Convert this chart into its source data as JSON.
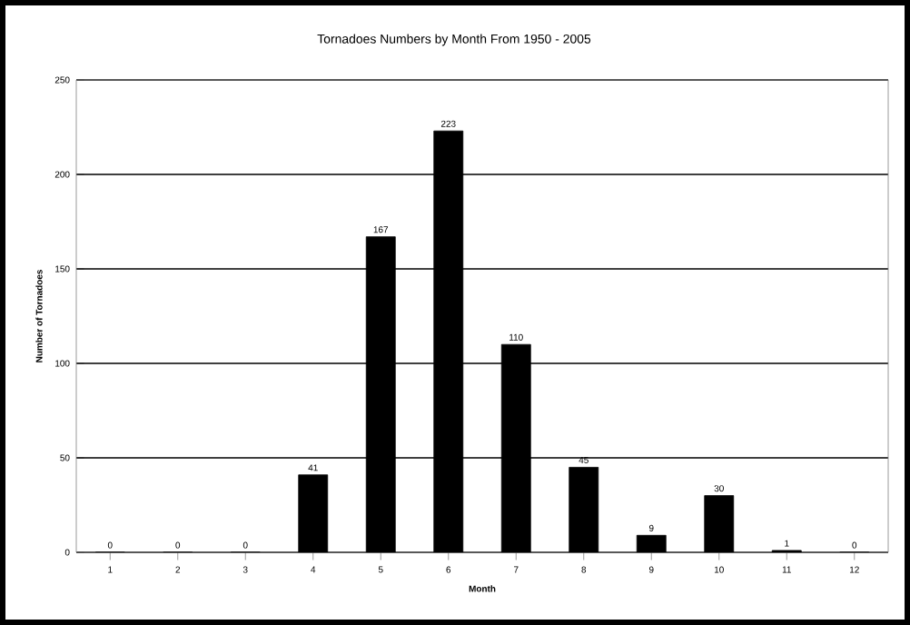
{
  "chart_data": {
    "type": "bar",
    "title": "Tornadoes Numbers by Month From 1950 - 2005",
    "xlabel": "Month",
    "ylabel": "Number of Tornadoes",
    "categories": [
      "1",
      "2",
      "3",
      "4",
      "5",
      "6",
      "7",
      "8",
      "9",
      "10",
      "11",
      "12"
    ],
    "values": [
      0,
      0,
      0,
      41,
      167,
      223,
      110,
      45,
      9,
      30,
      1,
      0
    ],
    "color": "#000000",
    "ylim": [
      0,
      250
    ],
    "yticks": [
      0,
      50,
      100,
      150,
      200,
      250
    ],
    "grid": "y",
    "data_labels": true
  }
}
